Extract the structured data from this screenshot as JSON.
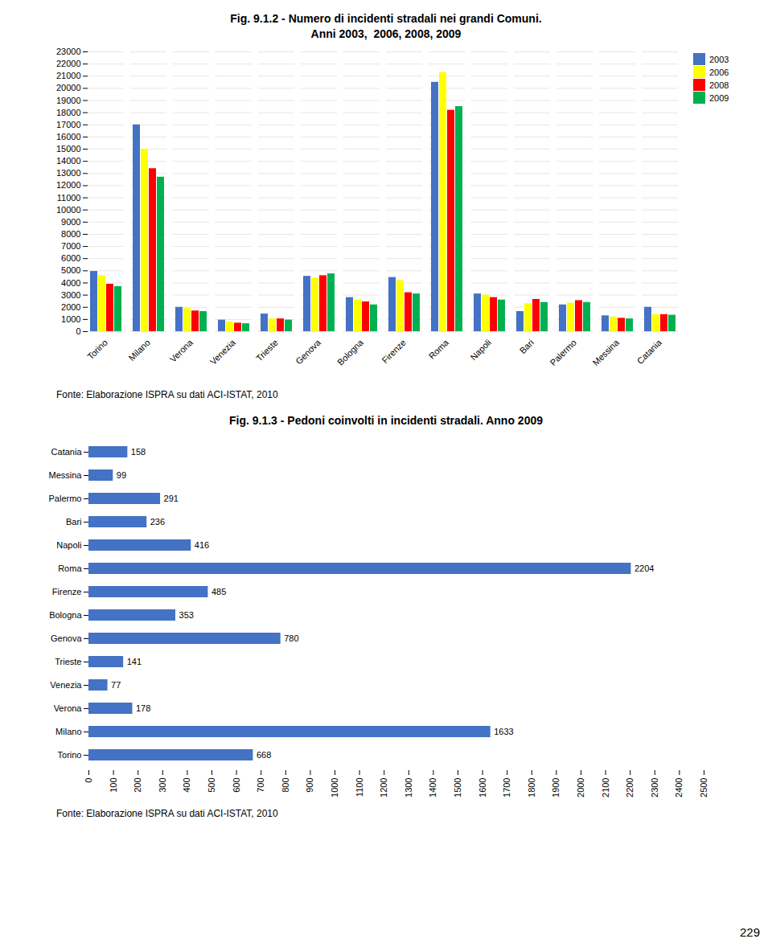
{
  "chart_data": [
    {
      "type": "bar",
      "title": "Fig. 9.1.2 - Numero di incidenti stradali nei grandi Comuni.",
      "subtitle": "Anni 2003,  2006, 2008, 2009",
      "categories": [
        "Torino",
        "Milano",
        "Verona",
        "Venezia",
        "Trieste",
        "Genova",
        "Bologna",
        "Firenze",
        "Roma",
        "Napoli",
        "Bari",
        "Palermo",
        "Messina",
        "Catania"
      ],
      "series": [
        {
          "name": "2003",
          "color": "#4472C4",
          "values": [
            4950,
            17000,
            2000,
            950,
            1450,
            4550,
            2800,
            4450,
            20500,
            3100,
            1650,
            2200,
            1300,
            2000
          ]
        },
        {
          "name": "2006",
          "color": "#FFFF00",
          "values": [
            4600,
            15000,
            1900,
            800,
            1050,
            4400,
            2600,
            4200,
            21300,
            3000,
            2300,
            2350,
            1200,
            1400
          ]
        },
        {
          "name": "2008",
          "color": "#FF0000",
          "values": [
            3900,
            13400,
            1700,
            700,
            1050,
            4600,
            2450,
            3200,
            18200,
            2800,
            2650,
            2550,
            1100,
            1400
          ]
        },
        {
          "name": "2009",
          "color": "#00B050",
          "values": [
            3700,
            12700,
            1650,
            650,
            950,
            4750,
            2200,
            3100,
            18500,
            2600,
            2400,
            2400,
            1050,
            1350
          ]
        }
      ],
      "ylim": [
        0,
        23000
      ],
      "yticks": [
        0,
        1000,
        2000,
        3000,
        4000,
        5000,
        6000,
        7000,
        8000,
        9000,
        10000,
        11000,
        12000,
        13000,
        14000,
        15000,
        16000,
        17000,
        18000,
        19000,
        20000,
        21000,
        22000,
        23000
      ],
      "grid": true,
      "legend": "right",
      "annotations": [
        "Fonte: Elaborazione ISPRA su dati ACI-ISTAT, 2010"
      ]
    },
    {
      "type": "bar",
      "orientation": "horizontal",
      "title": "Fig. 9.1.3 - Pedoni coinvolti in incidenti stradali. Anno 2009",
      "categories": [
        "Catania",
        "Messina",
        "Palermo",
        "Bari",
        "Napoli",
        "Roma",
        "Firenze",
        "Bologna",
        "Genova",
        "Trieste",
        "Venezia",
        "Verona",
        "Milano",
        "Torino"
      ],
      "values": [
        158,
        99,
        291,
        236,
        416,
        2204,
        485,
        353,
        780,
        141,
        77,
        178,
        1633,
        668
      ],
      "color": "#4472C4",
      "xlim": [
        0,
        2500
      ],
      "xticks": [
        0,
        100,
        200,
        300,
        400,
        500,
        600,
        700,
        800,
        900,
        1000,
        1100,
        1200,
        1300,
        1400,
        1500,
        1600,
        1700,
        1800,
        1900,
        2000,
        2100,
        2200,
        2300,
        2400,
        2500
      ],
      "grid": false,
      "data_labels": true,
      "annotations": [
        "Fonte: Elaborazione ISPRA su dati ACI-ISTAT, 2010"
      ]
    }
  ],
  "page_number": "229"
}
